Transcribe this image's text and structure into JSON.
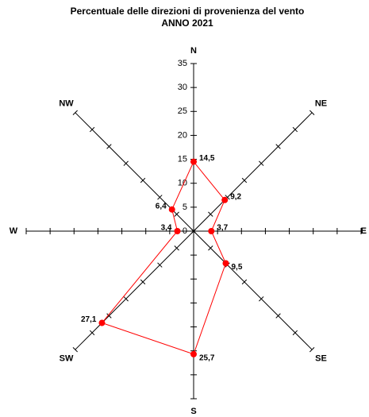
{
  "chart_data": {
    "type": "radar",
    "title": "Percentuale delle direzioni di provenienza del vento",
    "subtitle": "ANNO 2021",
    "categories": [
      "N",
      "NE",
      "E",
      "SE",
      "S",
      "SW",
      "W",
      "NW"
    ],
    "values": [
      14.5,
      9.2,
      3.7,
      9.5,
      25.7,
      27.1,
      3.4,
      6.4
    ],
    "value_labels": [
      "14,5",
      "9,2",
      "3,7",
      "9,5",
      "25,7",
      "27,1",
      "3,4",
      "6,4"
    ],
    "color": "#ff0000",
    "ylim": [
      0,
      35
    ],
    "yticks": [
      0,
      5,
      10,
      15,
      20,
      25,
      30,
      35
    ]
  }
}
